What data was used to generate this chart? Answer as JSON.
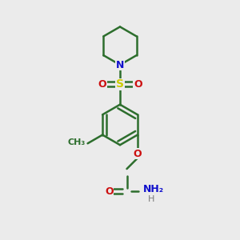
{
  "background_color": "#ebebeb",
  "bond_color": "#2d6e2d",
  "atom_colors": {
    "N": "#1010cc",
    "O": "#cc1010",
    "S": "#cccc00",
    "C": "#2d6e2d",
    "H": "#7a7a7a"
  },
  "line_width": 1.8,
  "fig_size": [
    3.0,
    3.0
  ],
  "dpi": 100
}
